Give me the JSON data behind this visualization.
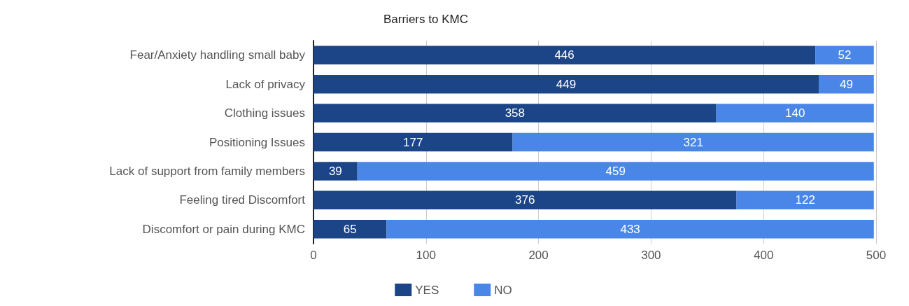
{
  "chart_data": {
    "type": "bar",
    "title": "Barriers to KMC",
    "orientation": "horizontal",
    "stacked": true,
    "categories": [
      "Fear/Anxiety handling small baby",
      "Lack of privacy",
      "Clothing issues",
      "Positioning Issues",
      "Lack of support from family members",
      "Feeling tired Discomfort",
      "Discomfort or pain during KMC"
    ],
    "series": [
      {
        "name": "YES",
        "color": "#1c4587",
        "values": [
          446,
          449,
          358,
          177,
          39,
          376,
          65
        ]
      },
      {
        "name": "NO",
        "color": "#4a86e8",
        "values": [
          52,
          49,
          140,
          321,
          459,
          122,
          433
        ]
      }
    ],
    "xlim": [
      0,
      500
    ],
    "xticks": [
      0,
      100,
      200,
      300,
      400,
      500
    ],
    "grid": "x",
    "legend": "bottom",
    "data_labels": true
  }
}
